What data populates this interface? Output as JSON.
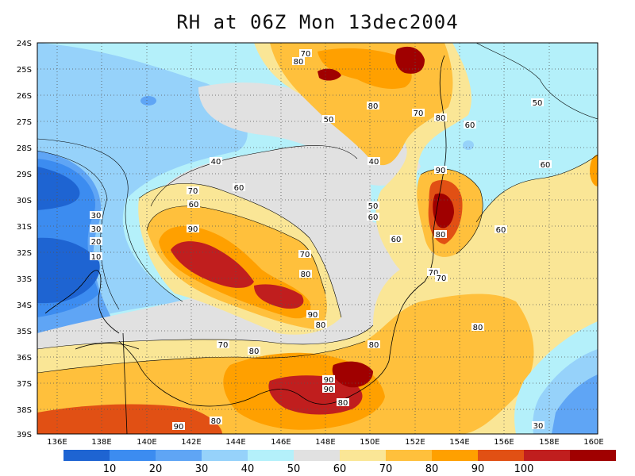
{
  "title": "RH at 06Z Mon 13dec2004",
  "lat_ticks": [
    "24S",
    "25S",
    "26S",
    "27S",
    "28S",
    "29S",
    "30S",
    "31S",
    "32S",
    "33S",
    "34S",
    "35S",
    "36S",
    "37S",
    "38S",
    "39S"
  ],
  "lon_ticks": [
    "136E",
    "138E",
    "140E",
    "142E",
    "144E",
    "146E",
    "148E",
    "150E",
    "152E",
    "154E",
    "156E",
    "158E",
    "160E"
  ],
  "colorbar": {
    "colors": [
      "#1e64d2",
      "#3c8cf0",
      "#5fa5f5",
      "#96d2fa",
      "#b4f0fa",
      "#e1e1e1",
      "#fae696",
      "#ffc03c",
      "#ffa000",
      "#e15014",
      "#c01e1e",
      "#a00000"
    ],
    "labels": [
      "10",
      "20",
      "30",
      "40",
      "50",
      "60",
      "70",
      "80",
      "90",
      "100"
    ]
  },
  "contour_labels": [
    "70",
    "80",
    "80",
    "70",
    "80",
    "60",
    "50",
    "50",
    "60",
    "40",
    "40",
    "70",
    "60",
    "60",
    "50",
    "60",
    "90",
    "80",
    "60",
    "30",
    "30",
    "20",
    "10",
    "90",
    "70",
    "80",
    "90",
    "80",
    "60",
    "70",
    "70",
    "80",
    "80",
    "70",
    "80",
    "90",
    "90",
    "80",
    "90",
    "80",
    "30"
  ]
}
